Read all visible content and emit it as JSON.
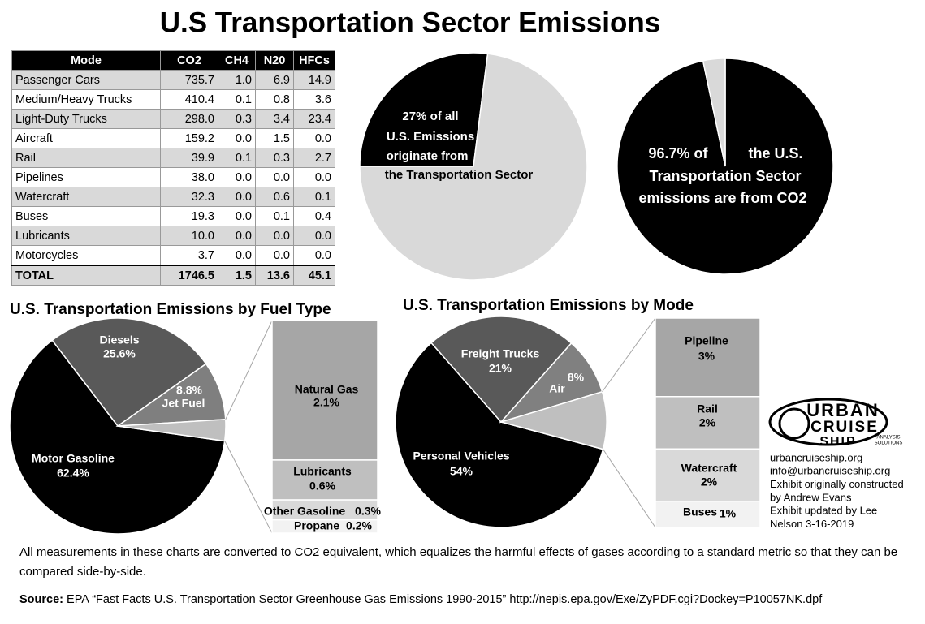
{
  "title": "U.S Transportation Sector Emissions",
  "table": {
    "header": [
      "Mode",
      "CO2",
      "CH4",
      "N20",
      "HFCs"
    ],
    "rows": [
      [
        "Passenger Cars",
        "735.7",
        "1.0",
        "6.9",
        "14.9"
      ],
      [
        "Medium/Heavy Trucks",
        "410.4",
        "0.1",
        "0.8",
        "3.6"
      ],
      [
        "Light-Duty Trucks",
        "298.0",
        "0.3",
        "3.4",
        "23.4"
      ],
      [
        "Aircraft",
        "159.2",
        "0.0",
        "1.5",
        "0.0"
      ],
      [
        "Rail",
        "39.9",
        "0.1",
        "0.3",
        "2.7"
      ],
      [
        "Pipelines",
        "38.0",
        "0.0",
        "0.0",
        "0.0"
      ],
      [
        "Watercraft",
        "32.3",
        "0.0",
        "0.6",
        "0.1"
      ],
      [
        "Buses",
        "19.3",
        "0.0",
        "0.1",
        "0.4"
      ],
      [
        "Lubricants",
        "10.0",
        "0.0",
        "0.0",
        "0.0"
      ],
      [
        "Motorcycles",
        "3.7",
        "0.0",
        "0.0",
        "0.0"
      ]
    ],
    "total": [
      "TOTAL",
      "1746.5",
      "1.5",
      "13.6",
      "45.1"
    ]
  },
  "chart_data": [
    {
      "type": "pie",
      "values": [
        27,
        73
      ],
      "colors": [
        "#000000",
        "#d9d9d9"
      ],
      "annotation": [
        "27% of all",
        "U.S. Emissions",
        "originate from",
        "the Transportation Sector"
      ]
    },
    {
      "type": "pie",
      "values": [
        96.7,
        3.3
      ],
      "colors": [
        "#000000",
        "#d9d9d9"
      ],
      "annotation": [
        "96.7% of",
        "the U.S.",
        "Transportation Sector",
        "emissions are from CO2"
      ]
    },
    {
      "type": "bar-of-pie",
      "title": "U.S. Transportation Emissions by Fuel Type",
      "categories": [
        "Motor Gasoline",
        "Diesels",
        "Jet Fuel"
      ],
      "values": [
        62.4,
        25.6,
        8.8
      ],
      "value_labels": [
        "62.4%",
        "25.6%",
        "8.8%"
      ],
      "colors": [
        "#000000",
        "#595959",
        "#7f7f7f"
      ],
      "breakout": {
        "categories": [
          "Natural Gas",
          "Lubricants",
          "Other Gasoline",
          "Propane"
        ],
        "values": [
          2.1,
          0.6,
          0.3,
          0.2
        ],
        "value_labels": [
          "2.1%",
          "0.6%",
          "0.3%",
          "0.2%"
        ],
        "colors": [
          "#a6a6a6",
          "#bfbfbf",
          "#d9d9d9",
          "#f2f2f2"
        ],
        "slice_color": "#bfbfbf"
      }
    },
    {
      "type": "bar-of-pie",
      "title": "U.S. Transportation Emissions by Mode",
      "categories": [
        "Personal Vehicles",
        "Freight Trucks",
        "Air"
      ],
      "values": [
        54,
        21,
        8
      ],
      "value_labels": [
        "54%",
        "21%",
        "8%"
      ],
      "colors": [
        "#000000",
        "#595959",
        "#808080"
      ],
      "breakout": {
        "categories": [
          "Pipeline",
          "Rail",
          "Watercraft",
          "Buses"
        ],
        "values": [
          3,
          2,
          2,
          1
        ],
        "value_labels": [
          "3%",
          "2%",
          "2%",
          "1%"
        ],
        "colors": [
          "#a6a6a6",
          "#bfbfbf",
          "#d9d9d9",
          "#f2f2f2"
        ],
        "slice_color": "#bfbfbf"
      }
    }
  ],
  "logo": [
    "URBAN",
    "CRUISE",
    "SHIP",
    "ANALYSIS",
    "SOLUTIONS"
  ],
  "credits": [
    "urbancruiseship.org",
    "info@urbancruiseship.org",
    "Exhibit originally constructed",
    "by Andrew Evans",
    "Exhibit updated by Lee",
    "Nelson 3-16-2019"
  ],
  "note": "All measurements in these charts are converted to CO2 equivalent, which equalizes the harmful effects of gases according to a standard metric so that they can be compared side-by-side.",
  "source": {
    "label": "Source:",
    "text": "EPA “Fast Facts U.S. Transportation Sector Greenhouse Gas Emissions 1990-2015” http://nepis.epa.gov/Exe/ZyPDF.cgi?Dockey=P10057NK.dpf"
  }
}
